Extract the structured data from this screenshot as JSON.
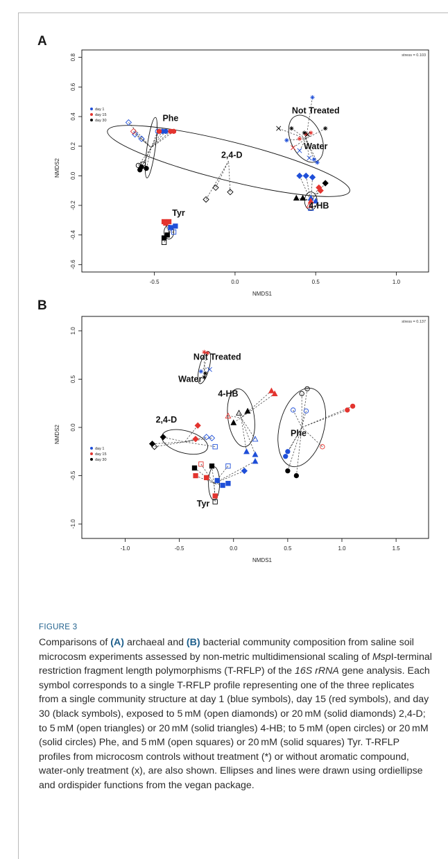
{
  "panels": [
    {
      "letter": "A",
      "stress": "stress = 0.103",
      "xlabel": "NMDS1",
      "ylabel": "NMDS2",
      "xticks": [
        "-0.5",
        "0.0",
        "0.5",
        "1.0"
      ],
      "yticks": [
        "0.8",
        "0.6",
        "0.4",
        "0.2",
        "0.0",
        "-0.2",
        "-0.4",
        "-0.6"
      ],
      "legend": [
        {
          "label": "day 1",
          "color": "#1f4fd8"
        },
        {
          "label": "day 15",
          "color": "#e3342f"
        },
        {
          "label": "day 30",
          "color": "#000000"
        }
      ],
      "groups": [
        "Phe",
        "Not Treated",
        "2,4-D",
        "Water",
        "4-HB",
        "Tyr"
      ]
    },
    {
      "letter": "B",
      "stress": "stress = 0.137",
      "xlabel": "NMDS1",
      "ylabel": "NMDS2",
      "xticks": [
        "-1.0",
        "-0.5",
        "0.0",
        "0.5",
        "1.0",
        "1.5"
      ],
      "yticks": [
        "1.0",
        "0.5",
        "0.0",
        "-0.5",
        "-1.0"
      ],
      "legend": [
        {
          "label": "day 1",
          "color": "#1f4fd8"
        },
        {
          "label": "day 15",
          "color": "#e3342f"
        },
        {
          "label": "day 30",
          "color": "#000000"
        }
      ],
      "groups": [
        "Not Treated",
        "Water",
        "4-HB",
        "2,4-D",
        "Phe",
        "Tyr"
      ]
    }
  ],
  "chart_data": [
    {
      "type": "scatter",
      "title": "A",
      "xlabel": "NMDS1",
      "ylabel": "NMDS2",
      "xlim": [
        -0.95,
        1.2
      ],
      "ylim": [
        -0.65,
        0.85
      ],
      "annotations": [
        "stress = 0.103",
        "Phe",
        "Not Treated",
        "2,4-D",
        "Water",
        "4-HB",
        "Tyr"
      ],
      "legend": [
        "day 1",
        "day 15",
        "day 30"
      ],
      "series": [
        {
          "name": "day 1",
          "color": "#1f4fd8",
          "points": [
            {
              "x": -0.66,
              "y": 0.36,
              "m": "diamond-open"
            },
            {
              "x": -0.62,
              "y": 0.28,
              "m": "diamond-open"
            },
            {
              "x": -0.58,
              "y": 0.25,
              "m": "diamond-open"
            },
            {
              "x": -0.48,
              "y": 0.3,
              "m": "circle-open"
            },
            {
              "x": -0.45,
              "y": 0.3,
              "m": "circle-filled"
            },
            {
              "x": -0.43,
              "y": 0.3,
              "m": "circle-filled"
            },
            {
              "x": 0.48,
              "y": 0.53,
              "m": "star"
            },
            {
              "x": 0.32,
              "y": 0.24,
              "m": "star"
            },
            {
              "x": 0.49,
              "y": 0.11,
              "m": "star"
            },
            {
              "x": 0.51,
              "y": 0.09,
              "m": "star"
            },
            {
              "x": 0.4,
              "y": 0.17,
              "m": "cross"
            },
            {
              "x": 0.46,
              "y": 0.12,
              "m": "cross"
            },
            {
              "x": 0.4,
              "y": 0.0,
              "m": "diamond-filled"
            },
            {
              "x": 0.44,
              "y": 0.0,
              "m": "diamond-filled"
            },
            {
              "x": 0.48,
              "y": -0.01,
              "m": "diamond-filled"
            },
            {
              "x": 0.47,
              "y": -0.15,
              "m": "triangle-filled"
            },
            {
              "x": 0.5,
              "y": -0.17,
              "m": "triangle-filled"
            },
            {
              "x": 0.47,
              "y": -0.22,
              "m": "triangle-open"
            },
            {
              "x": -0.37,
              "y": -0.34,
              "m": "square-filled"
            },
            {
              "x": -0.38,
              "y": -0.38,
              "m": "square-open"
            },
            {
              "x": -0.4,
              "y": -0.35,
              "m": "square-filled"
            }
          ]
        },
        {
          "name": "day 15",
          "color": "#e3342f",
          "points": [
            {
              "x": -0.63,
              "y": 0.3,
              "m": "diamond-open"
            },
            {
              "x": -0.47,
              "y": 0.3,
              "m": "circle-filled"
            },
            {
              "x": -0.4,
              "y": 0.3,
              "m": "circle-filled"
            },
            {
              "x": -0.38,
              "y": 0.3,
              "m": "circle-filled"
            },
            {
              "x": 0.4,
              "y": 0.25,
              "m": "star"
            },
            {
              "x": 0.44,
              "y": 0.28,
              "m": "star"
            },
            {
              "x": 0.47,
              "y": 0.29,
              "m": "star"
            },
            {
              "x": 0.36,
              "y": 0.19,
              "m": "cross"
            },
            {
              "x": 0.52,
              "y": -0.08,
              "m": "diamond-filled"
            },
            {
              "x": 0.53,
              "y": -0.1,
              "m": "diamond-filled"
            },
            {
              "x": 0.47,
              "y": -0.17,
              "m": "triangle-filled"
            },
            {
              "x": 0.46,
              "y": -0.2,
              "m": "triangle-open"
            },
            {
              "x": -0.44,
              "y": -0.31,
              "m": "square-filled"
            },
            {
              "x": -0.43,
              "y": -0.32,
              "m": "square-filled"
            },
            {
              "x": -0.41,
              "y": -0.31,
              "m": "square-filled"
            }
          ]
        },
        {
          "name": "day 30",
          "color": "#000000",
          "points": [
            {
              "x": -0.58,
              "y": 0.06,
              "m": "circle-filled"
            },
            {
              "x": -0.55,
              "y": 0.05,
              "m": "circle-filled"
            },
            {
              "x": -0.59,
              "y": 0.04,
              "m": "circle-filled"
            },
            {
              "x": -0.57,
              "y": 0.08,
              "m": "circle-open"
            },
            {
              "x": -0.6,
              "y": 0.07,
              "m": "circle-open"
            },
            {
              "x": -0.12,
              "y": -0.08,
              "m": "diamond-open"
            },
            {
              "x": -0.18,
              "y": -0.16,
              "m": "diamond-open"
            },
            {
              "x": -0.03,
              "y": -0.11,
              "m": "diamond-open"
            },
            {
              "x": 0.35,
              "y": 0.32,
              "m": "star"
            },
            {
              "x": 0.56,
              "y": 0.32,
              "m": "star"
            },
            {
              "x": 0.43,
              "y": 0.29,
              "m": "star"
            },
            {
              "x": 0.27,
              "y": 0.32,
              "m": "cross"
            },
            {
              "x": 0.45,
              "y": 0.28,
              "m": "cross"
            },
            {
              "x": 0.56,
              "y": -0.05,
              "m": "diamond-filled"
            },
            {
              "x": 0.38,
              "y": -0.15,
              "m": "triangle-filled"
            },
            {
              "x": 0.42,
              "y": -0.15,
              "m": "triangle-filled"
            },
            {
              "x": -0.44,
              "y": -0.45,
              "m": "square-open"
            },
            {
              "x": -0.44,
              "y": -0.42,
              "m": "square-filled"
            },
            {
              "x": -0.42,
              "y": -0.4,
              "m": "square-filled"
            }
          ]
        }
      ]
    },
    {
      "type": "scatter",
      "title": "B",
      "xlabel": "NMDS1",
      "ylabel": "NMDS2",
      "xlim": [
        -1.4,
        1.8
      ],
      "ylim": [
        -1.15,
        1.15
      ],
      "annotations": [
        "stress = 0.137",
        "Not Treated",
        "Water",
        "4-HB",
        "2,4-D",
        "Phe",
        "Tyr"
      ],
      "legend": [
        "day 1",
        "day 15",
        "day 30"
      ],
      "series": [
        {
          "name": "day 1",
          "color": "#1f4fd8",
          "points": [
            {
              "x": -0.3,
              "y": 0.58,
              "m": "star"
            },
            {
              "x": -0.22,
              "y": 0.6,
              "m": "cross"
            },
            {
              "x": -0.25,
              "y": -0.1,
              "m": "diamond-open"
            },
            {
              "x": -0.2,
              "y": -0.11,
              "m": "diamond-open"
            },
            {
              "x": -0.17,
              "y": -0.2,
              "m": "square-open"
            },
            {
              "x": 0.1,
              "y": -0.45,
              "m": "diamond-filled"
            },
            {
              "x": 0.2,
              "y": -0.28,
              "m": "triangle-filled"
            },
            {
              "x": 0.12,
              "y": -0.25,
              "m": "triangle-filled"
            },
            {
              "x": 0.2,
              "y": -0.35,
              "m": "triangle-filled"
            },
            {
              "x": 0.2,
              "y": -0.12,
              "m": "triangle-open"
            },
            {
              "x": 0.5,
              "y": -0.25,
              "m": "circle-filled"
            },
            {
              "x": 0.48,
              "y": -0.3,
              "m": "circle-filled"
            },
            {
              "x": 0.55,
              "y": 0.18,
              "m": "circle-open"
            },
            {
              "x": 0.67,
              "y": 0.17,
              "m": "circle-open"
            },
            {
              "x": -0.15,
              "y": -0.55,
              "m": "square-filled"
            },
            {
              "x": -0.1,
              "y": -0.6,
              "m": "square-filled"
            },
            {
              "x": -0.05,
              "y": -0.58,
              "m": "square-filled"
            },
            {
              "x": -0.05,
              "y": -0.4,
              "m": "square-open"
            }
          ]
        },
        {
          "name": "day 15",
          "color": "#e3342f",
          "points": [
            {
              "x": -0.27,
              "y": 0.78,
              "m": "star"
            },
            {
              "x": -0.24,
              "y": 0.77,
              "m": "star"
            },
            {
              "x": -0.33,
              "y": 0.02,
              "m": "diamond-filled"
            },
            {
              "x": -0.35,
              "y": -0.12,
              "m": "diamond-filled"
            },
            {
              "x": 0.35,
              "y": 0.38,
              "m": "triangle-filled"
            },
            {
              "x": 0.38,
              "y": 0.35,
              "m": "triangle-filled"
            },
            {
              "x": -0.05,
              "y": 0.12,
              "m": "triangle-open"
            },
            {
              "x": 1.1,
              "y": 0.22,
              "m": "circle-filled"
            },
            {
              "x": 1.05,
              "y": 0.18,
              "m": "circle-filled"
            },
            {
              "x": 0.82,
              "y": -0.2,
              "m": "circle-open"
            },
            {
              "x": -0.35,
              "y": -0.5,
              "m": "square-filled"
            },
            {
              "x": -0.25,
              "y": -0.52,
              "m": "square-filled"
            },
            {
              "x": -0.17,
              "y": -0.71,
              "m": "square-filled"
            },
            {
              "x": -0.3,
              "y": -0.38,
              "m": "square-open"
            }
          ]
        },
        {
          "name": "day 30",
          "color": "#000000",
          "points": [
            {
              "x": -0.27,
              "y": 0.52,
              "m": "star"
            },
            {
              "x": -0.26,
              "y": 0.56,
              "m": "star"
            },
            {
              "x": -0.75,
              "y": -0.17,
              "m": "diamond-filled"
            },
            {
              "x": -0.65,
              "y": -0.1,
              "m": "diamond-filled"
            },
            {
              "x": -0.73,
              "y": -0.2,
              "m": "diamond-open"
            },
            {
              "x": 0.05,
              "y": 0.15,
              "m": "triangle-open"
            },
            {
              "x": 0.13,
              "y": 0.17,
              "m": "triangle-filled"
            },
            {
              "x": 0.0,
              "y": 0.05,
              "m": "triangle-filled"
            },
            {
              "x": 0.68,
              "y": 0.4,
              "m": "circle-open"
            },
            {
              "x": 0.63,
              "y": 0.35,
              "m": "circle-open"
            },
            {
              "x": 0.5,
              "y": -0.45,
              "m": "circle-filled"
            },
            {
              "x": 0.58,
              "y": -0.5,
              "m": "circle-filled"
            },
            {
              "x": -0.36,
              "y": -0.42,
              "m": "square-filled"
            },
            {
              "x": -0.2,
              "y": -0.4,
              "m": "square-filled"
            },
            {
              "x": -0.17,
              "y": -0.77,
              "m": "square-open"
            }
          ]
        }
      ]
    }
  ],
  "caption": {
    "label": "FIGURE 3",
    "segments": [
      {
        "t": "Comparisons of "
      },
      {
        "t": "(A)",
        "b": true
      },
      {
        "t": " archaeal and "
      },
      {
        "t": "(B)",
        "b": true
      },
      {
        "t": " bacterial community composition from saline soil microcosm experiments assessed by non-metric multidimensional scaling of "
      },
      {
        "t": "Msp",
        "i": true
      },
      {
        "t": "I-terminal restriction fragment length polymorphisms (T-RFLP) of the "
      },
      {
        "t": "16S rRNA",
        "i": true
      },
      {
        "t": " gene analysis. Each symbol corresponds to a single T-RFLP profile representing one of the three replicates from a single community structure at day 1 (blue symbols), day 15 (red symbols), and day 30 (black symbols), exposed to 5 mM (open diamonds) or 20 mM (solid diamonds) 2,4-D; to 5 mM (open triangles) or 20 mM (solid triangles) 4-HB; to 5 mM (open circles) or 20 mM (solid circles) Phe, and 5 mM (open squares) or 20 mM (solid squares) Tyr. T-RFLP profiles from microcosm controls without treatment (*) or without aromatic compound, water-only treatment (x), are also shown. Ellipses and lines were drawn using ordiellipse and ordispider functions from the vegan package."
      }
    ]
  }
}
